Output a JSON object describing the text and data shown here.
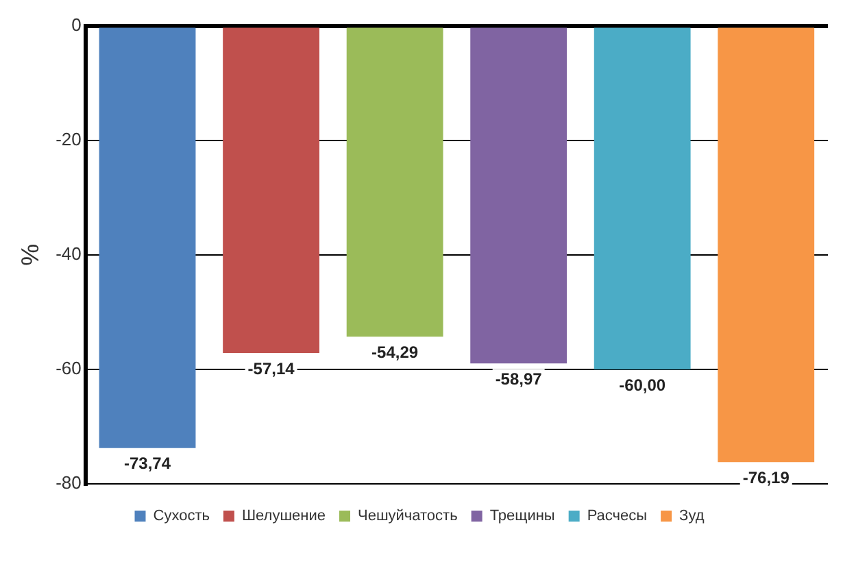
{
  "chart_data": {
    "type": "bar",
    "ylabel": "%",
    "categories": [
      null,
      null,
      null,
      null,
      null,
      null
    ],
    "series": [
      {
        "name": "Сухость",
        "color": "#4f81bd",
        "values": [
          -73.74,
          null,
          null,
          null,
          null,
          null
        ],
        "value_labels": [
          "-73,74",
          null,
          null,
          null,
          null,
          null
        ]
      },
      {
        "name": "Шелушение",
        "color": "#c0504d",
        "values": [
          null,
          -57.14,
          null,
          null,
          null,
          null
        ],
        "value_labels": [
          null,
          "-57,14",
          null,
          null,
          null,
          null
        ]
      },
      {
        "name": "Чешуйчатость",
        "color": "#9bbb59",
        "values": [
          null,
          null,
          -54.29,
          null,
          null,
          null
        ],
        "value_labels": [
          null,
          null,
          "-54,29",
          null,
          null,
          null
        ]
      },
      {
        "name": "Трещины",
        "color": "#8064a2",
        "values": [
          null,
          null,
          null,
          -58.97,
          null,
          null
        ],
        "value_labels": [
          null,
          null,
          null,
          "-58,97",
          null,
          null
        ]
      },
      {
        "name": "Расчесы",
        "color": "#4bacc6",
        "values": [
          null,
          null,
          null,
          null,
          -60.0,
          null
        ],
        "value_labels": [
          null,
          null,
          null,
          null,
          "-60,00",
          null
        ]
      },
      {
        "name": "Зуд",
        "color": "#f79646",
        "values": [
          null,
          null,
          null,
          null,
          null,
          -76.19
        ],
        "value_labels": [
          null,
          null,
          null,
          null,
          null,
          "-76,19"
        ]
      }
    ],
    "ylim": [
      -80,
      0
    ],
    "yticks": [
      0,
      -20,
      -40,
      -60,
      -80
    ],
    "grid": "y",
    "legend": "bottom"
  }
}
